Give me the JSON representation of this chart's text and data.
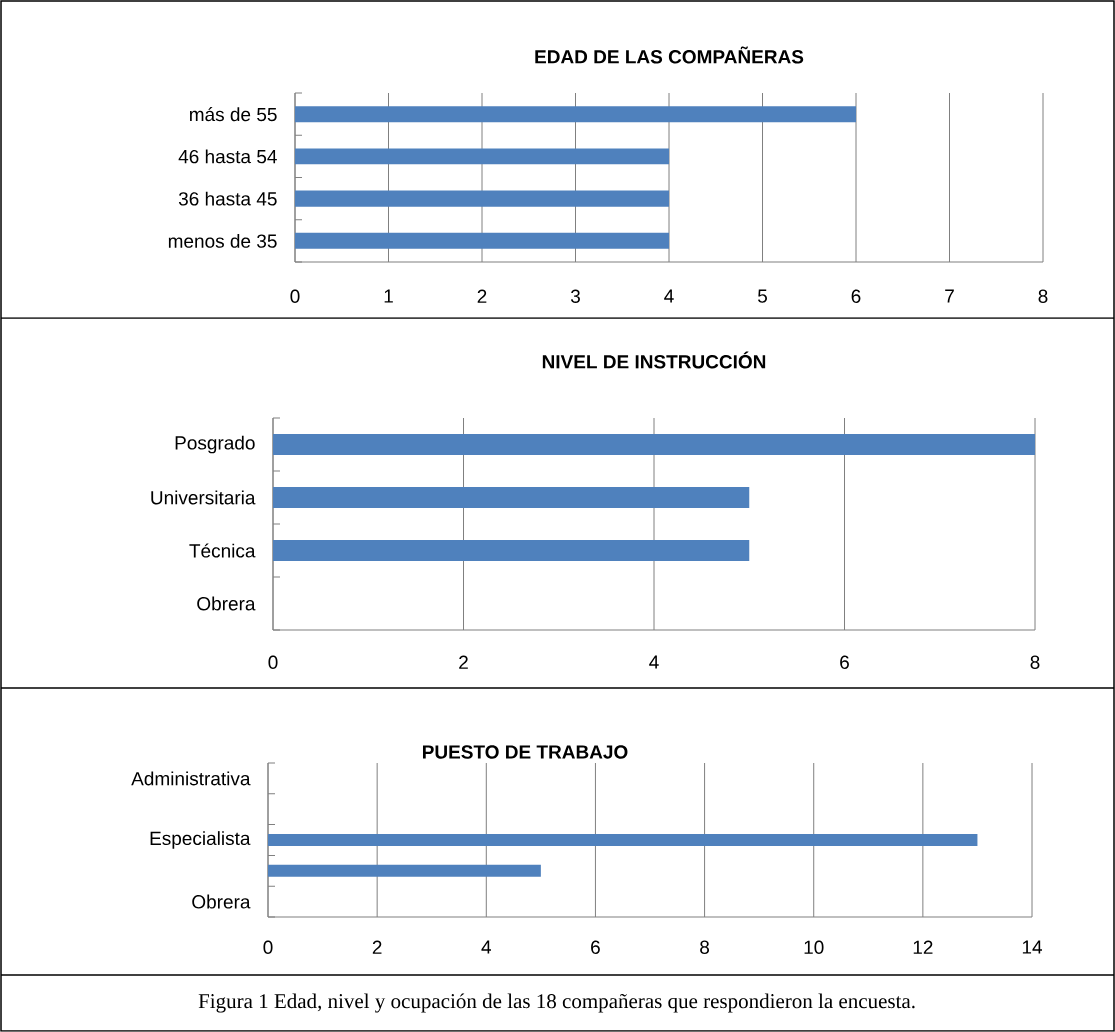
{
  "chart_data": [
    {
      "type": "bar",
      "orientation": "horizontal",
      "title": "EDAD DE LAS COMPAÑERAS",
      "categories": [
        "más de  55",
        "46 hasta 54",
        "36 hasta 45",
        "menos de   35"
      ],
      "values": [
        6,
        4,
        4,
        4
      ],
      "color": "#4f81bd",
      "xlim": [
        0,
        8
      ],
      "xticks": [
        0,
        1,
        2,
        3,
        4,
        5,
        6,
        7,
        8
      ],
      "grid": "x"
    },
    {
      "type": "bar",
      "orientation": "horizontal",
      "title": "NIVEL DE INSTRUCCIÓN",
      "categories": [
        "Posgrado",
        "Universitaria",
        "Técnica",
        "Obrera"
      ],
      "values": [
        8,
        5,
        5,
        0
      ],
      "color": "#4f81bd",
      "xlim": [
        0,
        8
      ],
      "xticks": [
        0,
        2,
        4,
        6,
        8
      ],
      "grid": "x"
    },
    {
      "type": "bar",
      "orientation": "horizontal",
      "title": "PUESTO DE TRABAJO",
      "categories": [
        "Administrativa",
        null,
        "Especialista",
        null,
        "Obrera"
      ],
      "values": [
        0,
        0,
        13,
        5,
        0
      ],
      "color": "#4f81bd",
      "xlim": [
        0,
        14
      ],
      "xticks": [
        0,
        2,
        4,
        6,
        8,
        10,
        12,
        14
      ],
      "grid": "x",
      "annotations": [
        "Figura 1 Edad, nivel y ocupación de las 18 compañeras que respondieron la encuesta."
      ]
    }
  ]
}
